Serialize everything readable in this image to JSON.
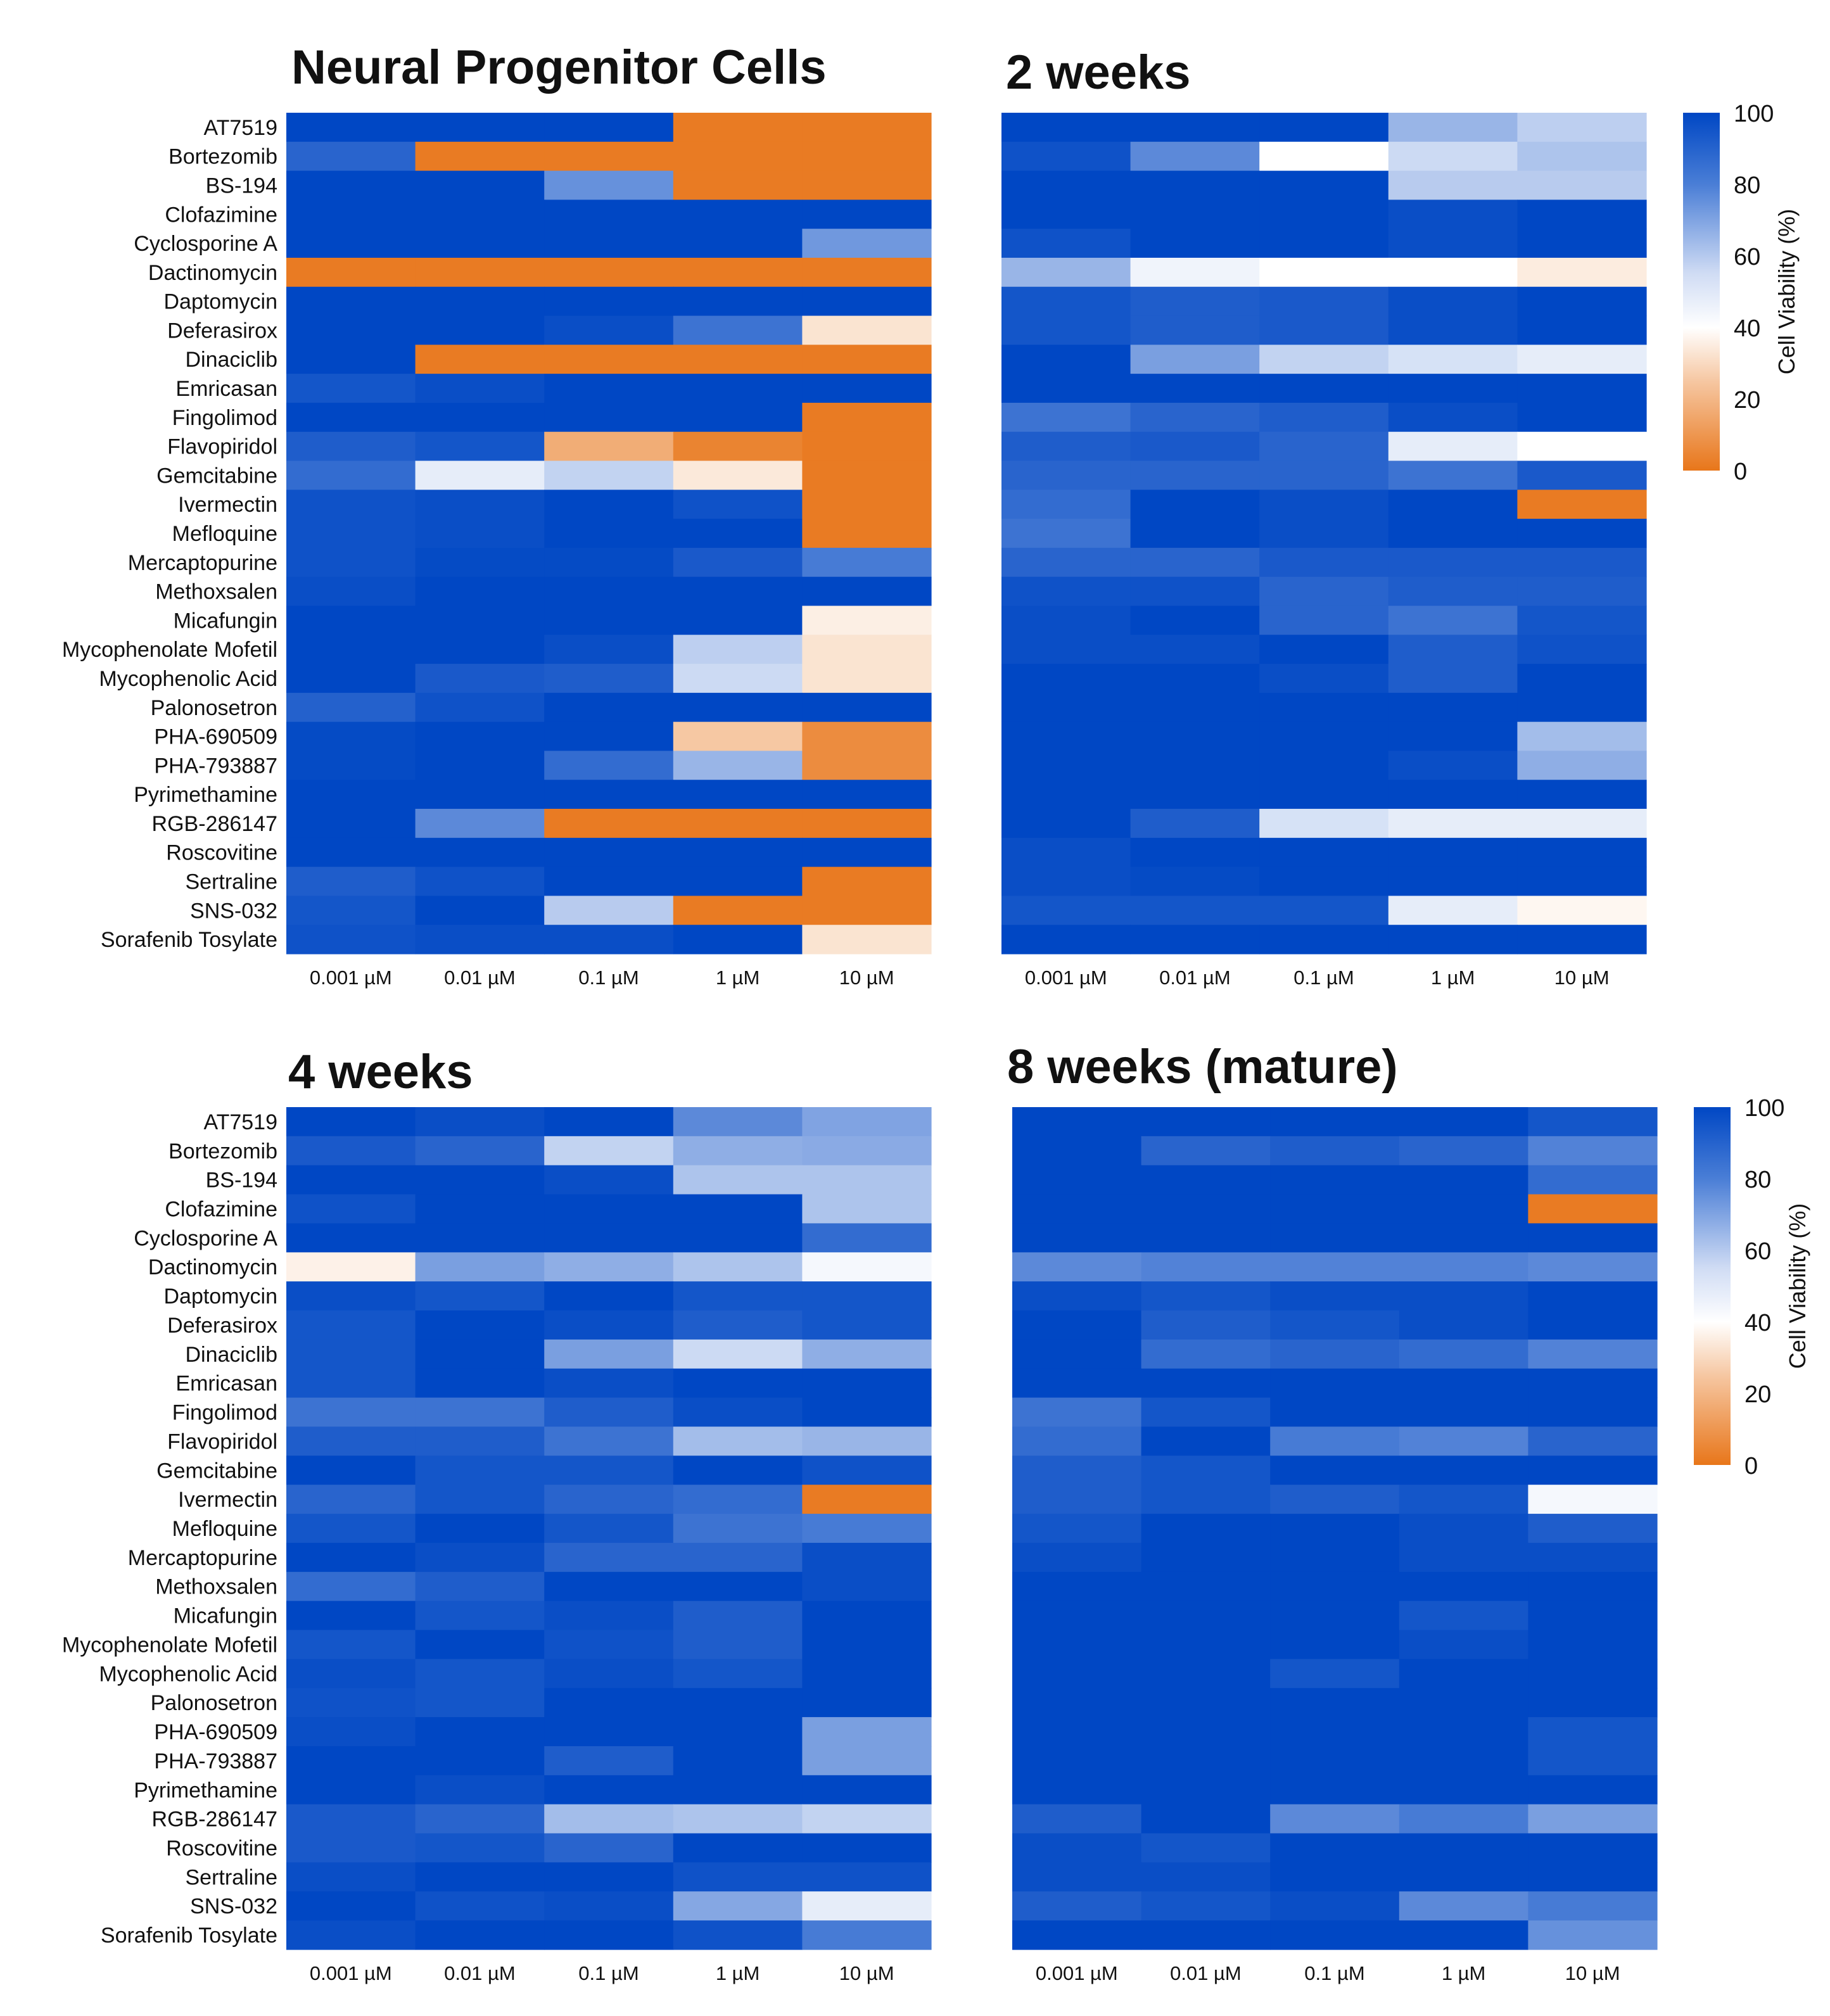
{
  "colors": {
    "low": "#e8761a",
    "mid": "#ffffff",
    "high": "#0047c4"
  },
  "chart_data": [
    {
      "type": "heatmap",
      "title": "Neural Progenitor Cells",
      "xlabel": "",
      "ylabel": "",
      "x_categories": [
        "0.001 µM",
        "0.01 µM",
        "0.1 µM",
        "1 µM",
        "10 µM"
      ],
      "y_categories": [
        "AT7519",
        "Bortezomib",
        "BS-194",
        "Clofazimine",
        "Cyclosporine A",
        "Dactinomycin",
        "Daptomycin",
        "Deferasirox",
        "Dinaciclib",
        "Emricasan",
        "Fingolimod",
        "Flavopiridol",
        "Gemcitabine",
        "Ivermectin",
        "Mefloquine",
        "Mercaptopurine",
        "Methoxsalen",
        "Micafungin",
        "Mycophenolate Mofetil",
        "Mycophenolic Acid",
        "Palonosetron",
        "PHA-690509",
        "PHA-793887",
        "Pyrimethamine",
        "RGB-286147",
        "Roscovitine",
        "Sertraline",
        "SNS-032",
        "Sorafenib Tosylate"
      ],
      "values": [
        [
          100,
          100,
          100,
          2,
          2
        ],
        [
          92,
          2,
          2,
          2,
          2
        ],
        [
          100,
          100,
          80,
          2,
          2
        ],
        [
          100,
          100,
          100,
          100,
          100
        ],
        [
          100,
          100,
          100,
          100,
          78
        ],
        [
          2,
          2,
          2,
          2,
          2
        ],
        [
          100,
          100,
          100,
          100,
          100
        ],
        [
          100,
          100,
          98,
          88,
          40
        ],
        [
          100,
          2,
          2,
          2,
          2
        ],
        [
          96,
          98,
          100,
          100,
          100
        ],
        [
          100,
          100,
          100,
          100,
          2
        ],
        [
          94,
          96,
          20,
          5,
          2
        ],
        [
          90,
          55,
          62,
          42,
          2
        ],
        [
          97,
          98,
          100,
          97,
          2
        ],
        [
          97,
          98,
          100,
          100,
          2
        ],
        [
          97,
          99,
          99,
          95,
          86
        ],
        [
          98,
          100,
          100,
          100,
          100
        ],
        [
          100,
          100,
          100,
          100,
          44
        ],
        [
          100,
          100,
          98,
          63,
          40
        ],
        [
          100,
          95,
          94,
          60,
          40
        ],
        [
          93,
          97,
          100,
          100,
          100
        ],
        [
          99,
          100,
          100,
          30,
          8
        ],
        [
          99,
          100,
          90,
          70,
          8
        ],
        [
          100,
          100,
          100,
          100,
          100
        ],
        [
          100,
          82,
          2,
          2,
          2
        ],
        [
          100,
          100,
          100,
          100,
          100
        ],
        [
          94,
          97,
          100,
          100,
          2
        ],
        [
          96,
          100,
          64,
          2,
          2
        ],
        [
          97,
          98,
          98,
          100,
          40
        ]
      ]
    },
    {
      "type": "heatmap",
      "title": "2 weeks",
      "xlabel": "",
      "ylabel": "",
      "x_categories": [
        "0.001 µM",
        "0.01 µM",
        "0.1 µM",
        "1 µM",
        "10 µM"
      ],
      "y_categories": [
        "AT7519",
        "Bortezomib",
        "BS-194",
        "Clofazimine",
        "Cyclosporine A",
        "Dactinomycin",
        "Daptomycin",
        "Deferasirox",
        "Dinaciclib",
        "Emricasan",
        "Fingolimod",
        "Flavopiridol",
        "Gemcitabine",
        "Ivermectin",
        "Mefloquine",
        "Mercaptopurine",
        "Methoxsalen",
        "Micafungin",
        "Mycophenolate Mofetil",
        "Mycophenolic Acid",
        "Palonosetron",
        "PHA-690509",
        "PHA-793887",
        "Pyrimethamine",
        "RGB-286147",
        "Roscovitine",
        "Sertraline",
        "SNS-032",
        "Sorafenib Tosylate"
      ],
      "values": [
        [
          100,
          100,
          100,
          70,
          63
        ],
        [
          97,
          82,
          50,
          60,
          66
        ],
        [
          100,
          100,
          100,
          64,
          64
        ],
        [
          100,
          100,
          100,
          98,
          100
        ],
        [
          97,
          100,
          100,
          98,
          100
        ],
        [
          70,
          53,
          50,
          50,
          43
        ],
        [
          96,
          94,
          95,
          98,
          100
        ],
        [
          96,
          94,
          95,
          98,
          100
        ],
        [
          100,
          76,
          62,
          58,
          55
        ],
        [
          100,
          100,
          100,
          100,
          100
        ],
        [
          88,
          92,
          94,
          98,
          100
        ],
        [
          94,
          95,
          92,
          55,
          50
        ],
        [
          92,
          92,
          92,
          88,
          95
        ],
        [
          90,
          100,
          98,
          100,
          2
        ],
        [
          88,
          100,
          98,
          100,
          100
        ],
        [
          92,
          92,
          95,
          95,
          95
        ],
        [
          97,
          97,
          92,
          94,
          94
        ],
        [
          98,
          100,
          92,
          88,
          96
        ],
        [
          98,
          98,
          100,
          94,
          97
        ],
        [
          100,
          100,
          98,
          94,
          100
        ],
        [
          100,
          100,
          100,
          100,
          100
        ],
        [
          100,
          100,
          100,
          100,
          68
        ],
        [
          100,
          100,
          100,
          98,
          72
        ],
        [
          100,
          100,
          100,
          100,
          100
        ],
        [
          100,
          94,
          58,
          55,
          55
        ],
        [
          98,
          100,
          100,
          100,
          100
        ],
        [
          98,
          99,
          100,
          100,
          100
        ],
        [
          96,
          96,
          96,
          55,
          47
        ],
        [
          100,
          100,
          100,
          100,
          100
        ]
      ]
    },
    {
      "type": "heatmap",
      "title": "4 weeks",
      "xlabel": "",
      "ylabel": "",
      "x_categories": [
        "0.001 µM",
        "0.01 µM",
        "0.1 µM",
        "1 µM",
        "10 µM"
      ],
      "y_categories": [
        "AT7519",
        "Bortezomib",
        "BS-194",
        "Clofazimine",
        "Cyclosporine A",
        "Dactinomycin",
        "Daptomycin",
        "Deferasirox",
        "Dinaciclib",
        "Emricasan",
        "Fingolimod",
        "Flavopiridol",
        "Gemcitabine",
        "Ivermectin",
        "Mefloquine",
        "Mercaptopurine",
        "Methoxsalen",
        "Micafungin",
        "Mycophenolate Mofetil",
        "Mycophenolic Acid",
        "Palonosetron",
        "PHA-690509",
        "PHA-793887",
        "Pyrimethamine",
        "RGB-286147",
        "Roscovitine",
        "Sertraline",
        "SNS-032",
        "Sorafenib Tosylate"
      ],
      "values": [
        [
          100,
          98,
          100,
          82,
          75
        ],
        [
          95,
          92,
          62,
          72,
          73
        ],
        [
          100,
          100,
          98,
          66,
          66
        ],
        [
          97,
          100,
          100,
          100,
          66
        ],
        [
          100,
          100,
          100,
          100,
          90
        ],
        [
          45,
          76,
          72,
          66,
          52
        ],
        [
          98,
          96,
          100,
          96,
          96
        ],
        [
          96,
          100,
          98,
          94,
          96
        ],
        [
          96,
          100,
          76,
          60,
          72
        ],
        [
          96,
          100,
          98,
          100,
          100
        ],
        [
          88,
          88,
          94,
          98,
          100
        ],
        [
          94,
          94,
          88,
          68,
          70
        ],
        [
          100,
          96,
          96,
          100,
          97
        ],
        [
          92,
          96,
          92,
          90,
          2
        ],
        [
          96,
          100,
          96,
          88,
          86
        ],
        [
          100,
          98,
          92,
          92,
          98
        ],
        [
          90,
          94,
          100,
          100,
          98
        ],
        [
          100,
          96,
          98,
          94,
          100
        ],
        [
          96,
          100,
          97,
          94,
          100
        ],
        [
          98,
          96,
          98,
          96,
          100
        ],
        [
          97,
          96,
          100,
          100,
          100
        ],
        [
          98,
          100,
          100,
          100,
          76
        ],
        [
          100,
          100,
          94,
          100,
          76
        ],
        [
          100,
          98,
          100,
          100,
          100
        ],
        [
          95,
          92,
          68,
          66,
          62
        ],
        [
          95,
          96,
          92,
          100,
          100
        ],
        [
          98,
          100,
          100,
          97,
          97
        ],
        [
          100,
          97,
          98,
          74,
          55
        ],
        [
          98,
          100,
          100,
          97,
          86
        ]
      ]
    },
    {
      "type": "heatmap",
      "title": "8 weeks (mature)",
      "xlabel": "",
      "ylabel": "",
      "x_categories": [
        "0.001 µM",
        "0.01 µM",
        "0.1 µM",
        "1 µM",
        "10 µM"
      ],
      "y_categories": [
        "AT7519",
        "Bortezomib",
        "BS-194",
        "Clofazimine",
        "Cyclosporine A",
        "Dactinomycin",
        "Daptomycin",
        "Deferasirox",
        "Dinaciclib",
        "Emricasan",
        "Fingolimod",
        "Flavopiridol",
        "Gemcitabine",
        "Ivermectin",
        "Mefloquine",
        "Mercaptopurine",
        "Methoxsalen",
        "Micafungin",
        "Mycophenolate Mofetil",
        "Mycophenolic Acid",
        "Palonosetron",
        "PHA-690509",
        "PHA-793887",
        "Pyrimethamine",
        "RGB-286147",
        "Roscovitine",
        "Sertraline",
        "SNS-032",
        "Sorafenib Tosylate"
      ],
      "values": [
        [
          100,
          100,
          100,
          100,
          96
        ],
        [
          100,
          92,
          94,
          92,
          84
        ],
        [
          100,
          100,
          100,
          100,
          90
        ],
        [
          100,
          100,
          100,
          100,
          2
        ],
        [
          100,
          100,
          100,
          100,
          100
        ],
        [
          82,
          84,
          84,
          84,
          82
        ],
        [
          98,
          96,
          98,
          98,
          100
        ],
        [
          100,
          94,
          96,
          98,
          100
        ],
        [
          100,
          90,
          92,
          90,
          84
        ],
        [
          100,
          100,
          100,
          100,
          100
        ],
        [
          88,
          96,
          100,
          100,
          100
        ],
        [
          90,
          100,
          86,
          84,
          92
        ],
        [
          94,
          96,
          100,
          100,
          100
        ],
        [
          94,
          96,
          94,
          96,
          52
        ],
        [
          96,
          100,
          100,
          98,
          94
        ],
        [
          98,
          100,
          100,
          98,
          98
        ],
        [
          100,
          100,
          100,
          100,
          100
        ],
        [
          100,
          100,
          100,
          96,
          100
        ],
        [
          100,
          100,
          100,
          98,
          100
        ],
        [
          100,
          100,
          96,
          100,
          100
        ],
        [
          100,
          100,
          100,
          100,
          100
        ],
        [
          100,
          100,
          100,
          100,
          96
        ],
        [
          100,
          100,
          100,
          100,
          96
        ],
        [
          100,
          100,
          100,
          100,
          100
        ],
        [
          94,
          100,
          82,
          86,
          76
        ],
        [
          98,
          96,
          100,
          100,
          100
        ],
        [
          98,
          98,
          100,
          100,
          100
        ],
        [
          94,
          96,
          98,
          82,
          86
        ],
        [
          100,
          100,
          100,
          100,
          80
        ]
      ]
    }
  ],
  "colorbar": {
    "label": "Cell Viability (%)",
    "ticks": [
      "100",
      "80",
      "60",
      "40",
      "20",
      "0"
    ],
    "range": [
      0,
      100
    ]
  }
}
